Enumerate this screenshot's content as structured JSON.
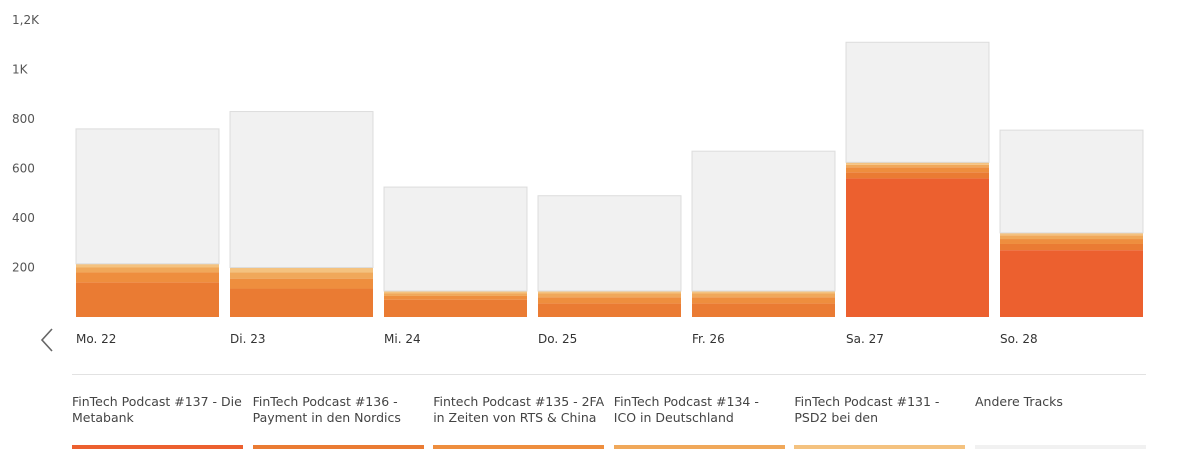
{
  "chart_data": {
    "type": "bar",
    "stacked": true,
    "categories": [
      "Mo. 22",
      "Di. 23",
      "Mi. 24",
      "Do. 25",
      "Fr. 26",
      "Sa. 27",
      "So. 28"
    ],
    "y_ticks": [
      "200",
      "400",
      "600",
      "800",
      "1K",
      "1,2K"
    ],
    "y_tick_values": [
      200,
      400,
      600,
      800,
      1000,
      1200
    ],
    "ylim": [
      0,
      1200
    ],
    "grid": false,
    "legend_position": "bottom",
    "series": [
      {
        "name": "FinTech Podcast #137 - Die Metabank",
        "color": "#ec602f",
        "values": [
          0,
          0,
          0,
          0,
          0,
          560,
          270
        ]
      },
      {
        "name": "FinTech Podcast #136 - Payment in den Nordics",
        "color": "#ea7b33",
        "values": [
          140,
          115,
          70,
          55,
          55,
          25,
          25
        ]
      },
      {
        "name": "Fintech Podcast #135 - 2FA in Zeiten von RTS & China",
        "color": "#ee8e3e",
        "values": [
          40,
          40,
          15,
          25,
          25,
          20,
          20
        ]
      },
      {
        "name": "FinTech Podcast #134 - ICO in Deutschland",
        "color": "#f0a85a",
        "values": [
          20,
          25,
          10,
          15,
          15,
          10,
          15
        ]
      },
      {
        "name": "FinTech Podcast #131 - PSD2 bei den",
        "color": "#f4c27f",
        "values": [
          15,
          20,
          10,
          10,
          10,
          10,
          10
        ]
      },
      {
        "name": "Andere Tracks",
        "color": "#f1f1f1",
        "values": [
          545,
          630,
          420,
          385,
          565,
          485,
          415
        ]
      }
    ]
  },
  "legend": {
    "items": [
      {
        "label": "FinTech Podcast #137 - Die Metabank",
        "color": "#ec602f"
      },
      {
        "label": "FinTech Podcast #136 - Payment in den Nordics",
        "color": "#ea7b33"
      },
      {
        "label": "Fintech Podcast #135 - 2FA in Zeiten von RTS & China",
        "color": "#ee8e3e"
      },
      {
        "label": "FinTech Podcast #134 - ICO in Deutschland",
        "color": "#f0a85a"
      },
      {
        "label": "FinTech Podcast #131 - PSD2 bei den",
        "color": "#f4c27f"
      },
      {
        "label": "Andere Tracks",
        "color": "#f1f1f1"
      }
    ]
  },
  "icons": {
    "prev": "chevron-left-icon"
  }
}
